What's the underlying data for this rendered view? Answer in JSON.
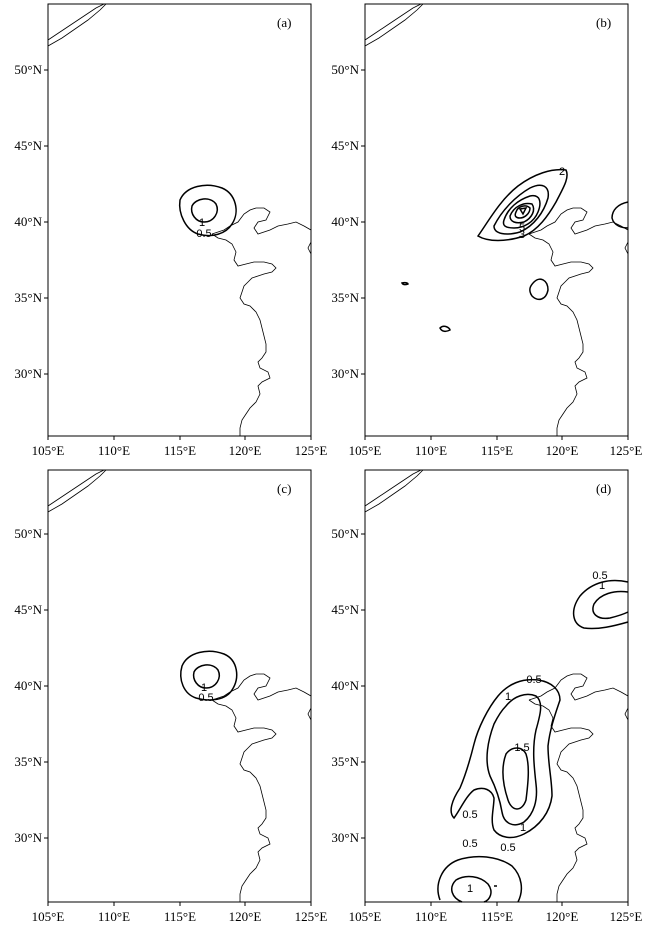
{
  "panels": [
    {
      "id": "a",
      "label": "(a)",
      "lat_ticks": [
        "50°N",
        "45°N",
        "40°N",
        "35°N",
        "30°N"
      ],
      "lon_ticks": [
        "105°E",
        "110°E",
        "115°E",
        "120°E",
        "125°E"
      ],
      "contour_labels": [
        "1",
        "0.5"
      ]
    },
    {
      "id": "b",
      "label": "(b)",
      "lat_ticks": [
        "50°N",
        "45°N",
        "40°N",
        "35°N",
        "30°N"
      ],
      "lon_ticks": [
        "105°E",
        "110°E",
        "115°E",
        "120°E",
        "125°E"
      ],
      "contour_labels": [
        "2",
        "5",
        "3"
      ]
    },
    {
      "id": "c",
      "label": "(c)",
      "lat_ticks": [
        "50°N",
        "45°N",
        "40°N",
        "35°N",
        "30°N"
      ],
      "lon_ticks": [
        "105°E",
        "110°E",
        "115°E",
        "120°E",
        "125°E"
      ],
      "contour_labels": [
        "1",
        "0.5"
      ]
    },
    {
      "id": "d",
      "label": "(d)",
      "lat_ticks": [
        "50°N",
        "45°N",
        "40°N",
        "35°N",
        "30°N"
      ],
      "lon_ticks": [
        "105°E",
        "110°E",
        "115°E",
        "120°E",
        "125°E"
      ],
      "contour_labels": [
        "0.5",
        "1",
        "0.5",
        "1",
        "1.5",
        "1",
        "0.5",
        "0.5",
        "0.5",
        "1"
      ]
    }
  ]
}
